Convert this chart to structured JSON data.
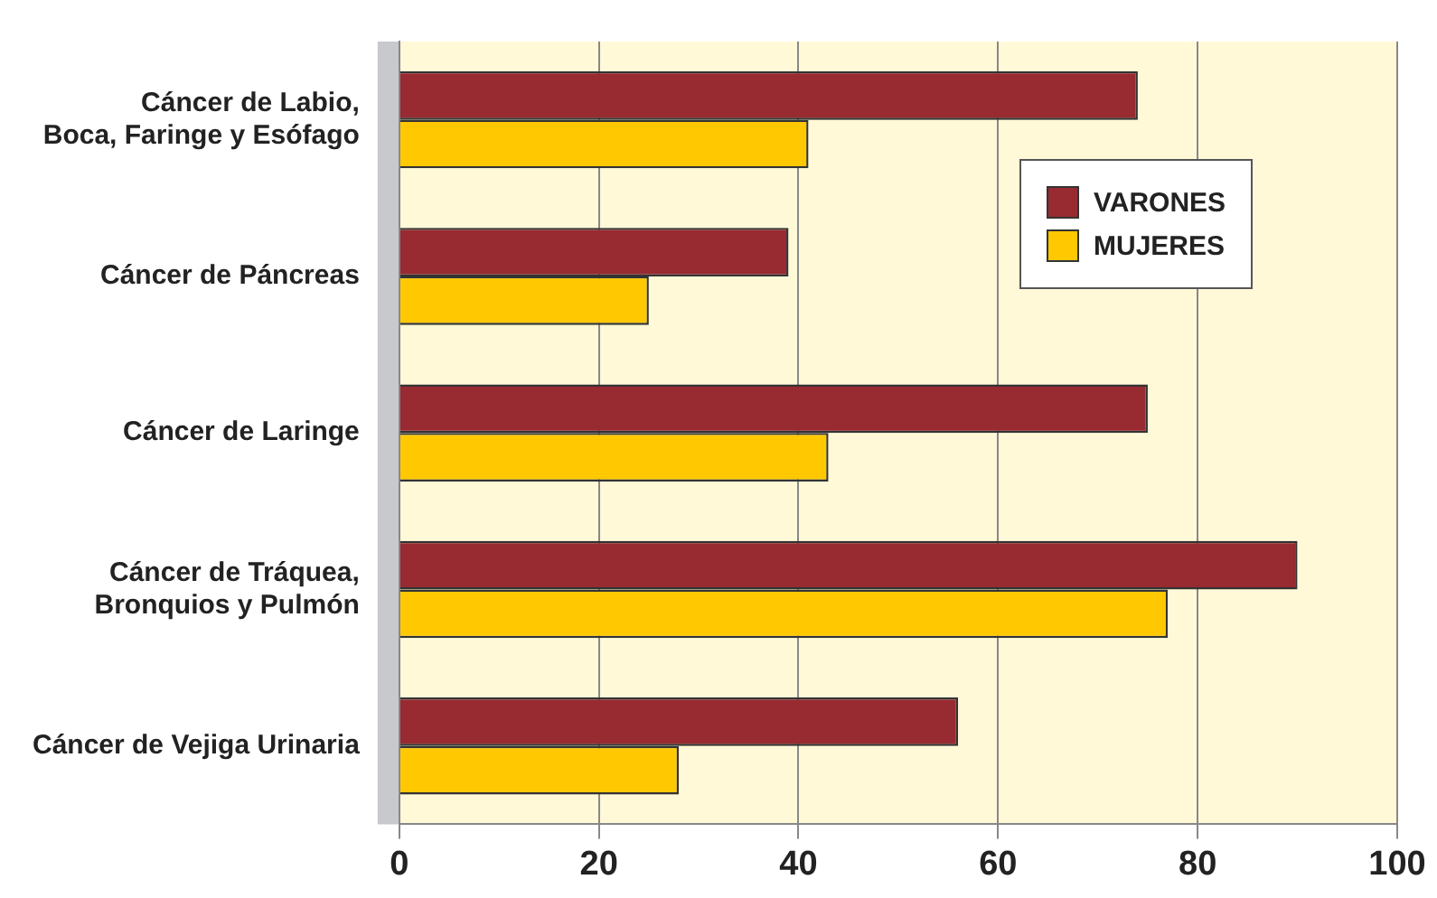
{
  "chart_data": {
    "type": "bar",
    "orientation": "horizontal",
    "categories": [
      "Cáncer de Labio, Boca, Faringe y Esófago",
      "Cáncer de Páncreas",
      "Cáncer de Laringe",
      "Cáncer de Tráquea, Bronquios y Pulmón",
      "Cáncer de Vejiga Urinaria"
    ],
    "series": [
      {
        "name": "VARONES",
        "color": "#982a31",
        "values": [
          74,
          39,
          75,
          90,
          56
        ]
      },
      {
        "name": "MUJERES",
        "color": "#ffc800",
        "values": [
          41,
          25,
          43,
          77,
          28
        ]
      }
    ],
    "xlim": [
      0,
      100
    ],
    "xticks": [
      0,
      20,
      40,
      60,
      80,
      100
    ],
    "grid": "x",
    "legend": "top right"
  }
}
